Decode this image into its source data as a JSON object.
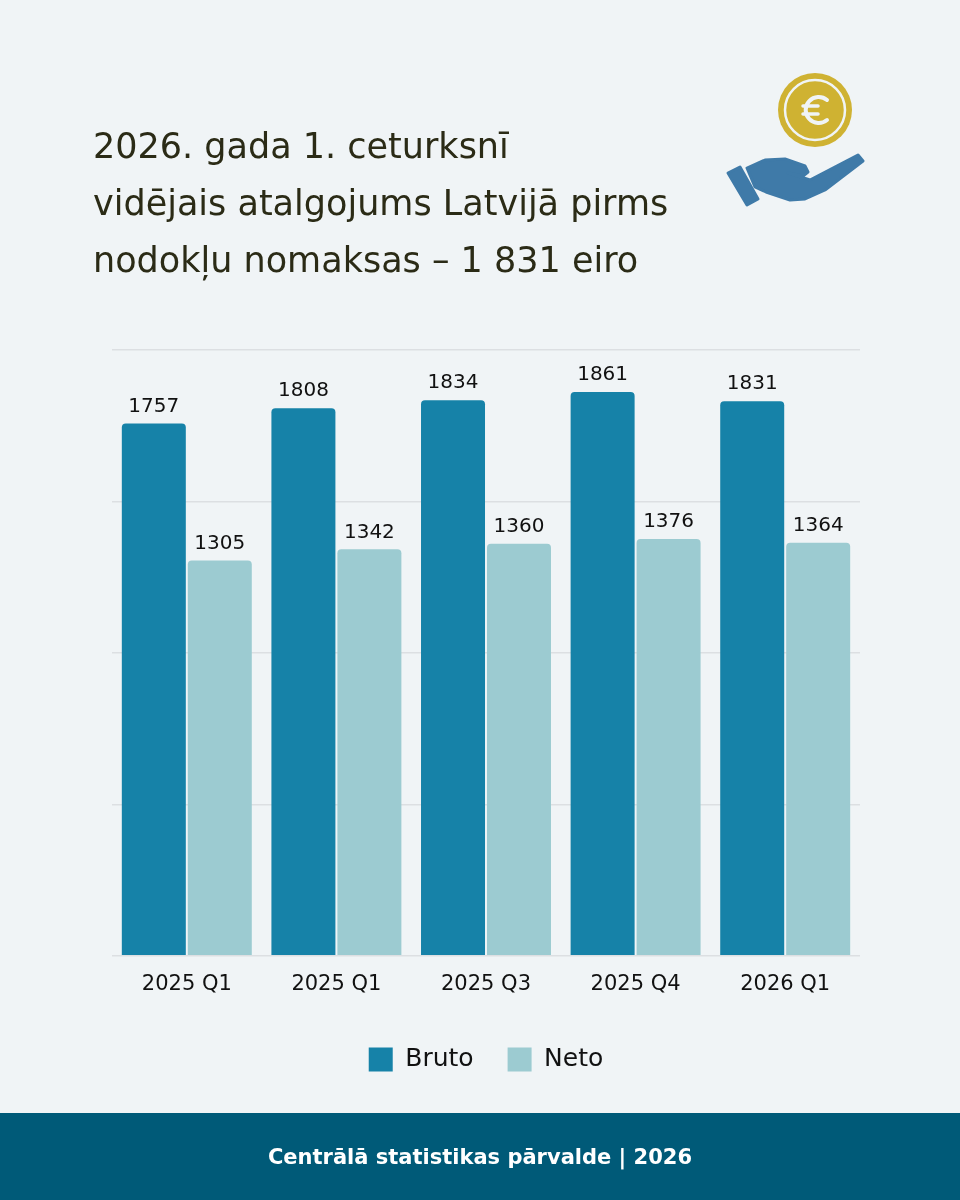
{
  "chart_data": {
    "type": "bar",
    "title": "2026. gada 1. ceturksnī",
    "subtitle": "vidējais atalgojums Latvijā pirms nodokļu nomaksas – 1 831 eiro",
    "categories": [
      "2025 Q1",
      "2025 Q1",
      "2025 Q3",
      "2025 Q4",
      "2026 Q1"
    ],
    "series": [
      {
        "name": "Bruto",
        "color": "#1682a8",
        "values": [
          1757,
          1808,
          1834,
          1861,
          1831
        ]
      },
      {
        "name": "Neto",
        "color": "#9ccbd1",
        "values": [
          1305,
          1342,
          1360,
          1376,
          1364
        ]
      }
    ],
    "ylim": [
      0,
      2000
    ],
    "yticks": [
      {
        "value": 0,
        "label": null
      },
      {
        "value": 500,
        "label": null
      },
      {
        "value": 1000,
        "label": null
      },
      {
        "value": 1500,
        "label": null
      },
      {
        "value": 2000,
        "label": null
      }
    ],
    "grid": "y",
    "legend": "bottom",
    "tick_labels": "x",
    "data_labels": true,
    "annotations": [
      "Centrālā statistikas pārvalde | 2026"
    ]
  }
}
